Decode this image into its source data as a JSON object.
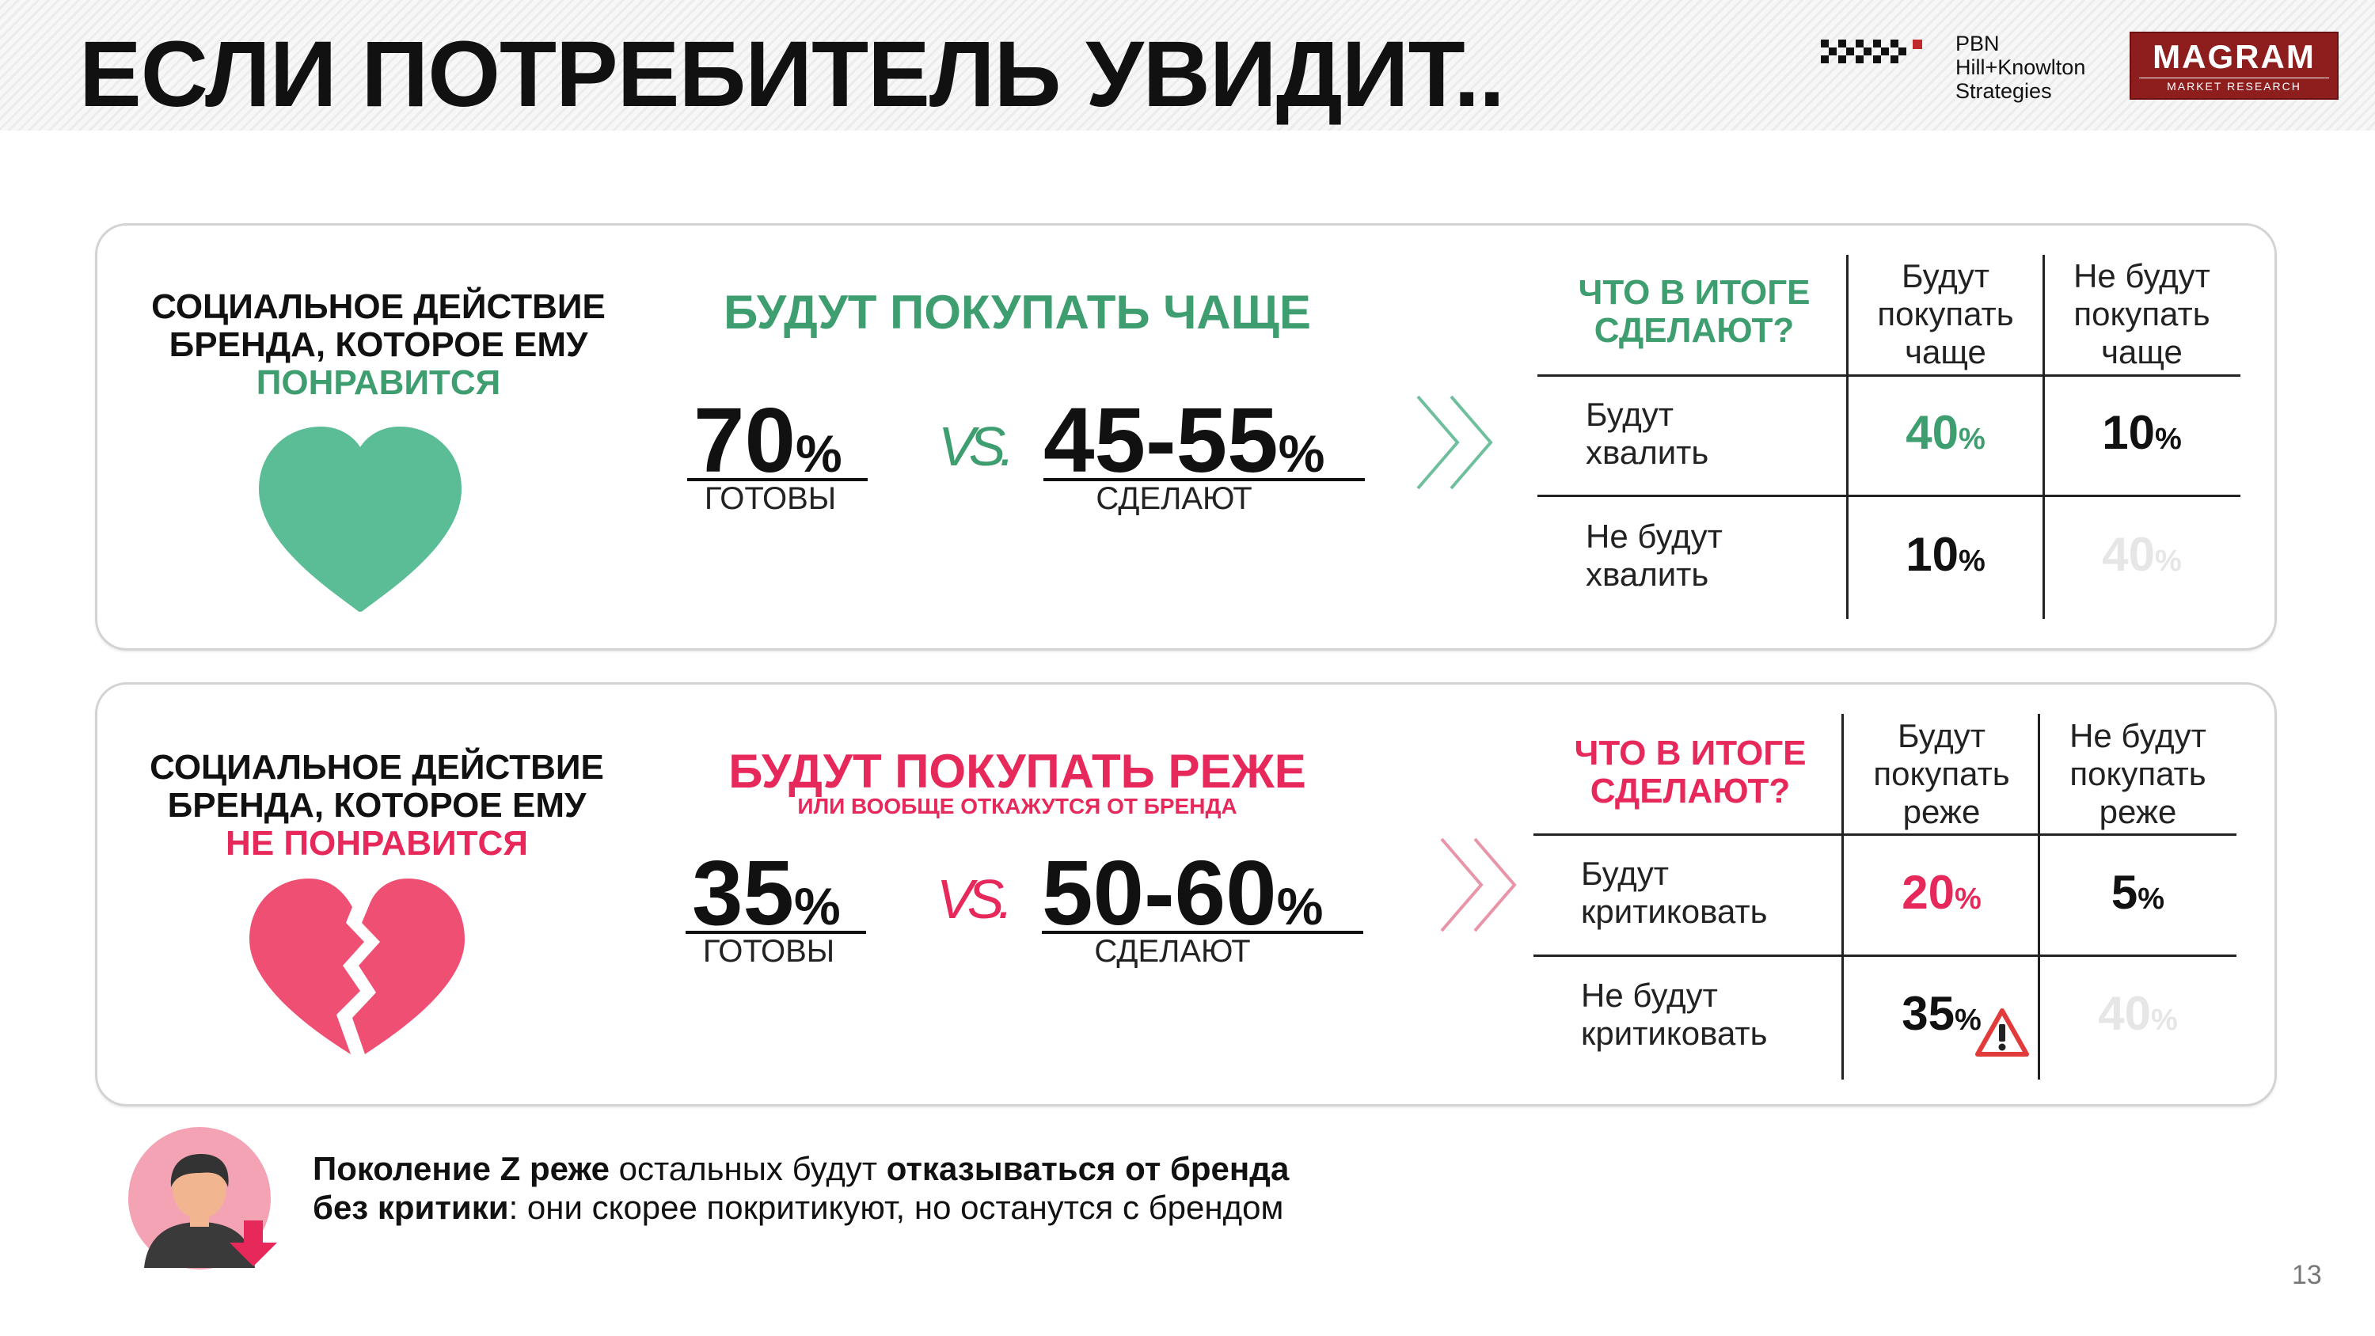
{
  "header": {
    "title": "ЕСЛИ ПОТРЕБИТЕЛЬ УВИДИТ..",
    "logo_pbn_lines": [
      "PBN",
      "Hill+Knowlton",
      "Strategies"
    ],
    "logo_magram": "MAGRAM",
    "logo_magram_sub": "MARKET RESEARCH"
  },
  "card_positive": {
    "left_line1": "СОЦИАЛЬНОЕ ДЕЙСТВИЕ",
    "left_line2": "БРЕНДА, КОТОРОЕ ЕМУ",
    "left_highlight": "ПОНРАВИТСЯ",
    "heading": "БУДУТ ПОКУПАТЬ ЧАЩЕ",
    "stat1_value": "70",
    "stat1_label": "ГОТОВЫ",
    "vs": "VS.",
    "stat2_value": "45-55",
    "stat2_label": "СДЕЛАЮТ",
    "percent": "%",
    "table": {
      "question_line1": "ЧТО В ИТОГЕ",
      "question_line2": "СДЕЛАЮТ?",
      "col1": [
        "Будут",
        "покупать",
        "чаще"
      ],
      "col2": [
        "Не будут",
        "покупать",
        "чаще"
      ],
      "row1": [
        "Будут",
        "хвалить"
      ],
      "row2": [
        "Не будут",
        "хвалить"
      ],
      "r1c1": "40",
      "r1c2": "10",
      "r2c1": "10",
      "r2c2": "40"
    }
  },
  "card_negative": {
    "left_line1": "СОЦИАЛЬНОЕ ДЕЙСТВИЕ",
    "left_line2": "БРЕНДА, КОТОРОЕ ЕМУ",
    "left_highlight": "НЕ ПОНРАВИТСЯ",
    "heading": "БУДУТ ПОКУПАТЬ РЕЖЕ",
    "subheading": "ИЛИ ВООБЩЕ ОТКАЖУТСЯ ОТ БРЕНДА",
    "stat1_value": "35",
    "stat1_label": "ГОТОВЫ",
    "vs": "VS.",
    "stat2_value": "50-60",
    "stat2_label": "СДЕЛАЮТ",
    "percent": "%",
    "table": {
      "question_line1": "ЧТО В ИТОГЕ",
      "question_line2": "СДЕЛАЮТ?",
      "col1": [
        "Будут",
        "покупать",
        "реже"
      ],
      "col2": [
        "Не будут",
        "покупать",
        "реже"
      ],
      "row1": [
        "Будут",
        "критиковать"
      ],
      "row2": [
        "Не будут",
        "критиковать"
      ],
      "r1c1": "20",
      "r1c2": "5",
      "r2c1": "35",
      "r2c2": "40"
    }
  },
  "footer": {
    "bold1": "Поколение Z реже",
    "text1": " остальных будут ",
    "bold2": "отказываться от бренда без критики",
    "text2": ": они скорее покритикуют, но останутся с брендом"
  },
  "page_number": "13",
  "colors": {
    "green": "#3f9e70",
    "pink": "#e6295a",
    "faded": "#e6e6e6"
  }
}
